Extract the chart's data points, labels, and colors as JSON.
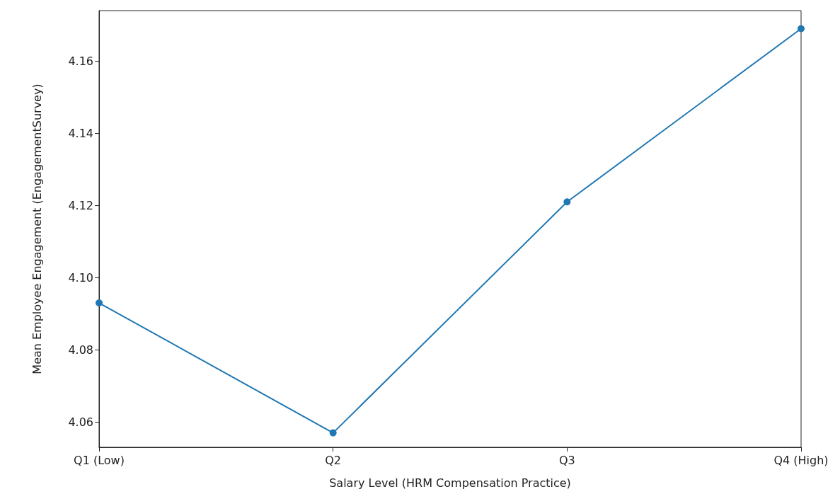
{
  "chart_data": {
    "type": "line",
    "xlabel": "Salary Level (HRM Compensation Practice)",
    "ylabel": "Mean Employee Engagement (EngagementSurvey)",
    "categories": [
      "Q1 (Low)",
      "Q2",
      "Q3",
      "Q4 (High)"
    ],
    "series": [
      {
        "color": "#1f77b4",
        "values": [
          4.093,
          4.057,
          4.121,
          4.169
        ]
      }
    ],
    "ylim": [
      4.053,
      4.174
    ],
    "yticks": [
      {
        "value": 4.06,
        "label": "4.06"
      },
      {
        "value": 4.08,
        "label": "4.08"
      },
      {
        "value": 4.1,
        "label": "4.10"
      },
      {
        "value": 4.12,
        "label": "4.12"
      },
      {
        "value": 4.14,
        "label": "4.14"
      },
      {
        "value": 4.16,
        "label": "4.16"
      }
    ],
    "grid": false,
    "marker": "circle",
    "line_style": "solid"
  }
}
